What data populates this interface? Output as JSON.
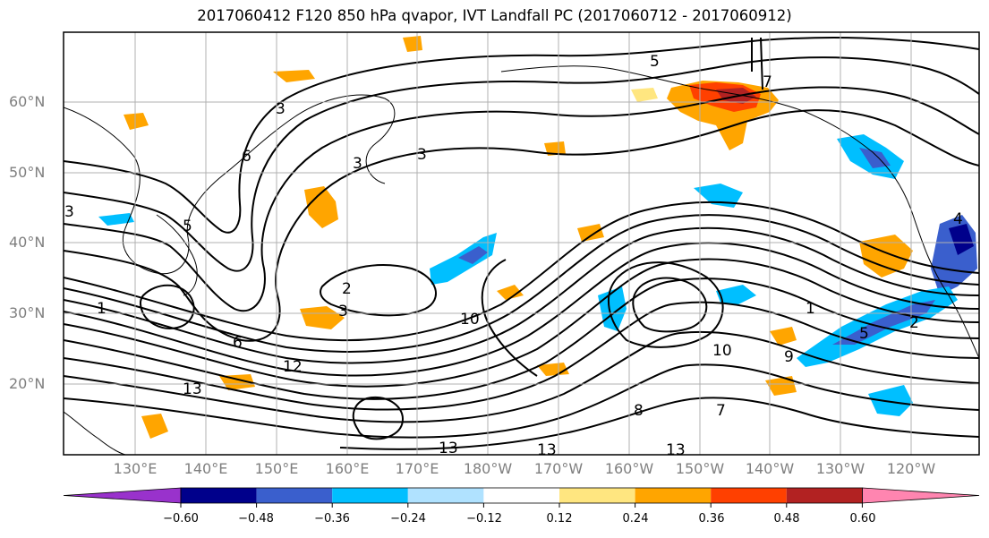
{
  "title": "2017060412 F120 850 hPa qvapor, IVT Landfall PC (2017060712 - 2017060912)",
  "map": {
    "lat_ticks": [
      "60°N",
      "50°N",
      "40°N",
      "30°N",
      "20°N"
    ],
    "lon_ticks": [
      "130°E",
      "140°E",
      "150°E",
      "160°E",
      "170°E",
      "180°W",
      "170°W",
      "160°W",
      "150°W",
      "140°W",
      "130°W",
      "120°W"
    ],
    "contour_labels": [
      "5",
      "7",
      "3",
      "6",
      "3",
      "3",
      "5",
      "3",
      "4",
      "2",
      "3",
      "12",
      "13",
      "1",
      "10",
      "9",
      "10",
      "8",
      "7",
      "13",
      "13",
      "6",
      "5",
      "2",
      "1",
      "13"
    ]
  },
  "colorbar": {
    "ticks": [
      "−0.60",
      "−0.48",
      "−0.36",
      "−0.24",
      "−0.12",
      "0.12",
      "0.24",
      "0.36",
      "0.48",
      "0.60"
    ],
    "colors": [
      "#9932cc",
      "#00008b",
      "#3a5fcd",
      "#00bfff",
      "#b0e2ff",
      "#ffffff",
      "#ffe680",
      "#ffa500",
      "#ff4000",
      "#b22222",
      "#ff85b0"
    ]
  }
}
